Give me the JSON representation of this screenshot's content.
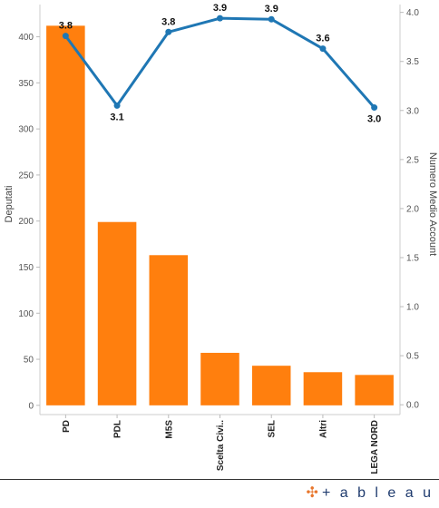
{
  "chart_data": {
    "type": "bar+line",
    "categories": [
      "PD",
      "PDL",
      "M5S",
      "Scelta Civi..",
      "SEL",
      "Altri",
      "LEGA NORD"
    ],
    "series": [
      {
        "type": "bar",
        "axis": "left",
        "values": [
          412,
          199,
          163,
          57,
          43,
          36,
          33
        ],
        "color": "#ff7f0e"
      },
      {
        "type": "line",
        "axis": "right",
        "values": [
          3.76,
          3.05,
          3.8,
          3.94,
          3.93,
          3.63,
          3.03
        ],
        "labels": [
          "3.8",
          "3.1",
          "3.8",
          "3.9",
          "3.9",
          "3.6",
          "3.0"
        ],
        "color": "#1f77b4"
      }
    ],
    "y_left": {
      "label": "Deputati",
      "range": [
        -10,
        435
      ],
      "ticks": [
        0,
        50,
        100,
        150,
        200,
        250,
        300,
        350,
        400
      ],
      "tick_labels": [
        "0",
        "50",
        "100",
        "150",
        "200",
        "250",
        "300",
        "350",
        "400"
      ]
    },
    "y_right": {
      "label": "Numero Medio Account",
      "range": [
        -0.1,
        4.08
      ],
      "ticks": [
        0,
        0.5,
        1,
        1.5,
        2,
        2.5,
        3,
        3.5,
        4
      ],
      "tick_labels": [
        "0.0",
        "0.5",
        "1.0",
        "1.5",
        "2.0",
        "2.5",
        "3.0",
        "3.5",
        "4.0"
      ]
    },
    "grid": false,
    "legend": "none"
  },
  "footer": {
    "logo_mark": "✣",
    "logo_text": "+ a b l e a u"
  }
}
